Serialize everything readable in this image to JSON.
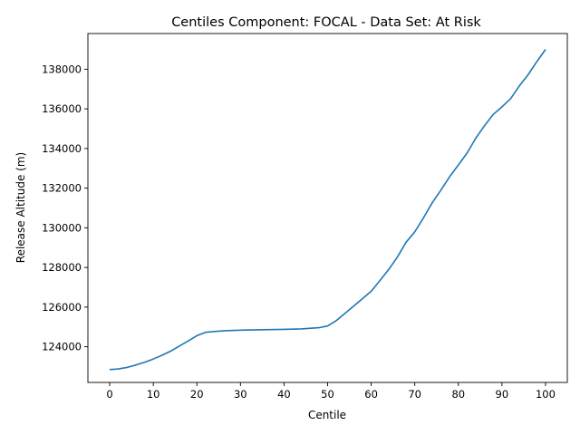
{
  "chart_data": {
    "type": "line",
    "title": "Centiles Component: FOCAL - Data Set: At Risk",
    "xlabel": "Centile",
    "ylabel": "Release Altitude (m)",
    "xlim": [
      -5,
      105
    ],
    "ylim": [
      122200,
      139800
    ],
    "xticks": [
      0,
      10,
      20,
      30,
      40,
      50,
      60,
      70,
      80,
      90,
      100
    ],
    "yticks": [
      124000,
      126000,
      128000,
      130000,
      132000,
      134000,
      136000,
      138000
    ],
    "grid": false,
    "series": [
      {
        "color": "#1f77b4",
        "x": [
          0,
          2,
          4,
          6,
          8,
          10,
          12,
          14,
          16,
          18,
          20,
          22,
          24,
          26,
          28,
          30,
          35,
          40,
          44,
          48,
          50,
          52,
          56,
          60,
          62,
          64,
          66,
          68,
          70,
          72,
          74,
          76,
          78,
          80,
          82,
          84,
          86,
          88,
          90,
          92,
          94,
          96,
          98,
          100
        ],
        "y": [
          122850,
          122880,
          122960,
          123080,
          123220,
          123380,
          123570,
          123780,
          124040,
          124290,
          124560,
          124730,
          124770,
          124800,
          124820,
          124840,
          124860,
          124880,
          124900,
          124960,
          125050,
          125320,
          126060,
          126800,
          127340,
          127890,
          128520,
          129270,
          129800,
          130500,
          131260,
          131900,
          132580,
          133170,
          133770,
          134520,
          135150,
          135720,
          136100,
          136520,
          137160,
          137720,
          138380,
          139000
        ]
      }
    ]
  }
}
